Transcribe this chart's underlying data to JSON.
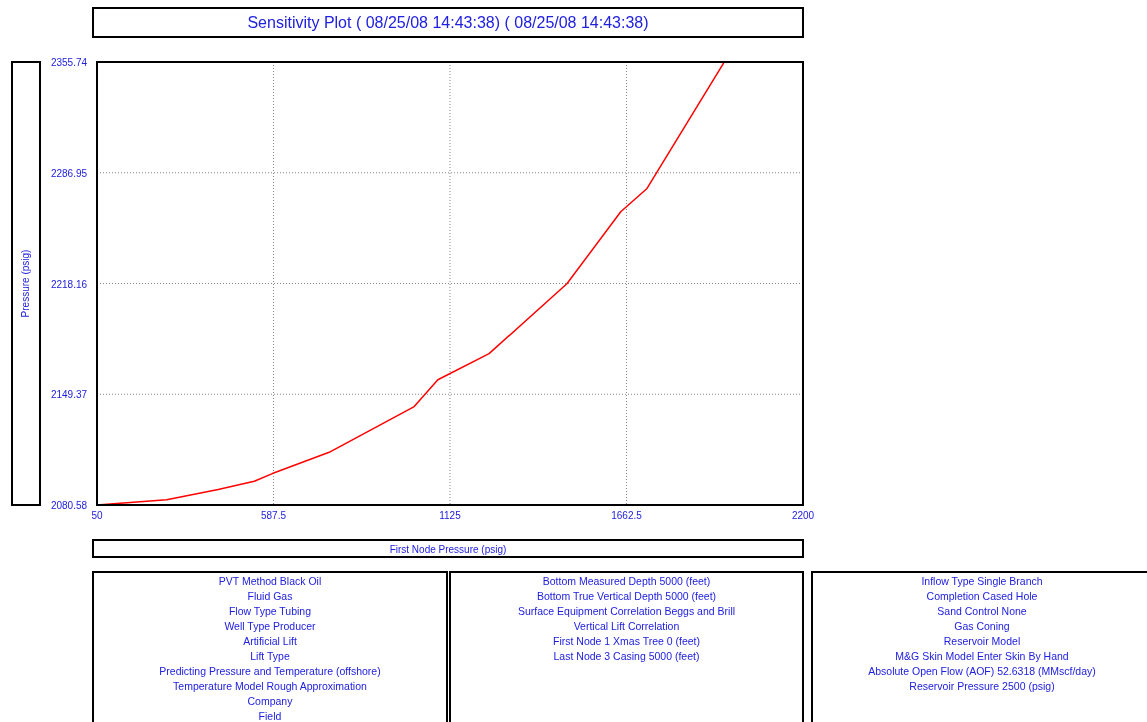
{
  "chart_data": {
    "type": "line",
    "title": "Sensitivity Plot ( 08/25/08 14:43:38) ( 08/25/08 14:43:38)",
    "xlabel": "First Node Pressure  (psig)",
    "ylabel": "Pressure  (psig)",
    "x": [
      50,
      262,
      419,
      529,
      584,
      757,
      1016,
      1088,
      1244,
      1481,
      1645,
      1725,
      1960
    ],
    "series": [
      {
        "color": "#ff0000",
        "values": [
          2080.6,
          2083.8,
          2090.2,
          2095.3,
          2100.1,
          2113.3,
          2141.7,
          2158.4,
          2174.6,
          2218.0,
          2262.7,
          2277.2,
          2355.7
        ]
      }
    ],
    "xlim": [
      50,
      2200
    ],
    "xticks": [
      50,
      587.5,
      1125,
      1662.5,
      2200
    ],
    "ylim": [
      2080.58,
      2355.74
    ],
    "yticks": [
      2080.58,
      2149.37,
      2218.16,
      2286.95,
      2355.74
    ],
    "grid": true,
    "marker": "none",
    "line_style": "solid",
    "annotations": [
      "PVT Method Black Oil",
      "Fluid Gas",
      "Flow Type Tubing",
      "Well Type Producer",
      "Artificial Lift",
      "Lift Type",
      "Predicting Pressure and Temperature (offshore)",
      "Temperature Model Rough Approximation",
      "Company",
      "Field",
      "Bottom Measured Depth 5000 (feet)",
      "Bottom True Vertical Depth 5000 (feet)",
      "Surface Equipment Correlation Beggs and Brill",
      "Vertical Lift Correlation",
      "First Node 1 Xmas Tree 0 (feet)",
      "Last Node 3 Casing 5000 (feet)",
      "Inflow Type Single Branch",
      "Completion Cased Hole",
      "Sand Control None",
      "Gas Coning",
      "Reservoir Model",
      "M&G Skin Model Enter Skin By Hand",
      "Absolute Open Flow (AOF) 52.6318 (MMscf/day)",
      "Reservoir Pressure 2500 (psig)"
    ]
  }
}
